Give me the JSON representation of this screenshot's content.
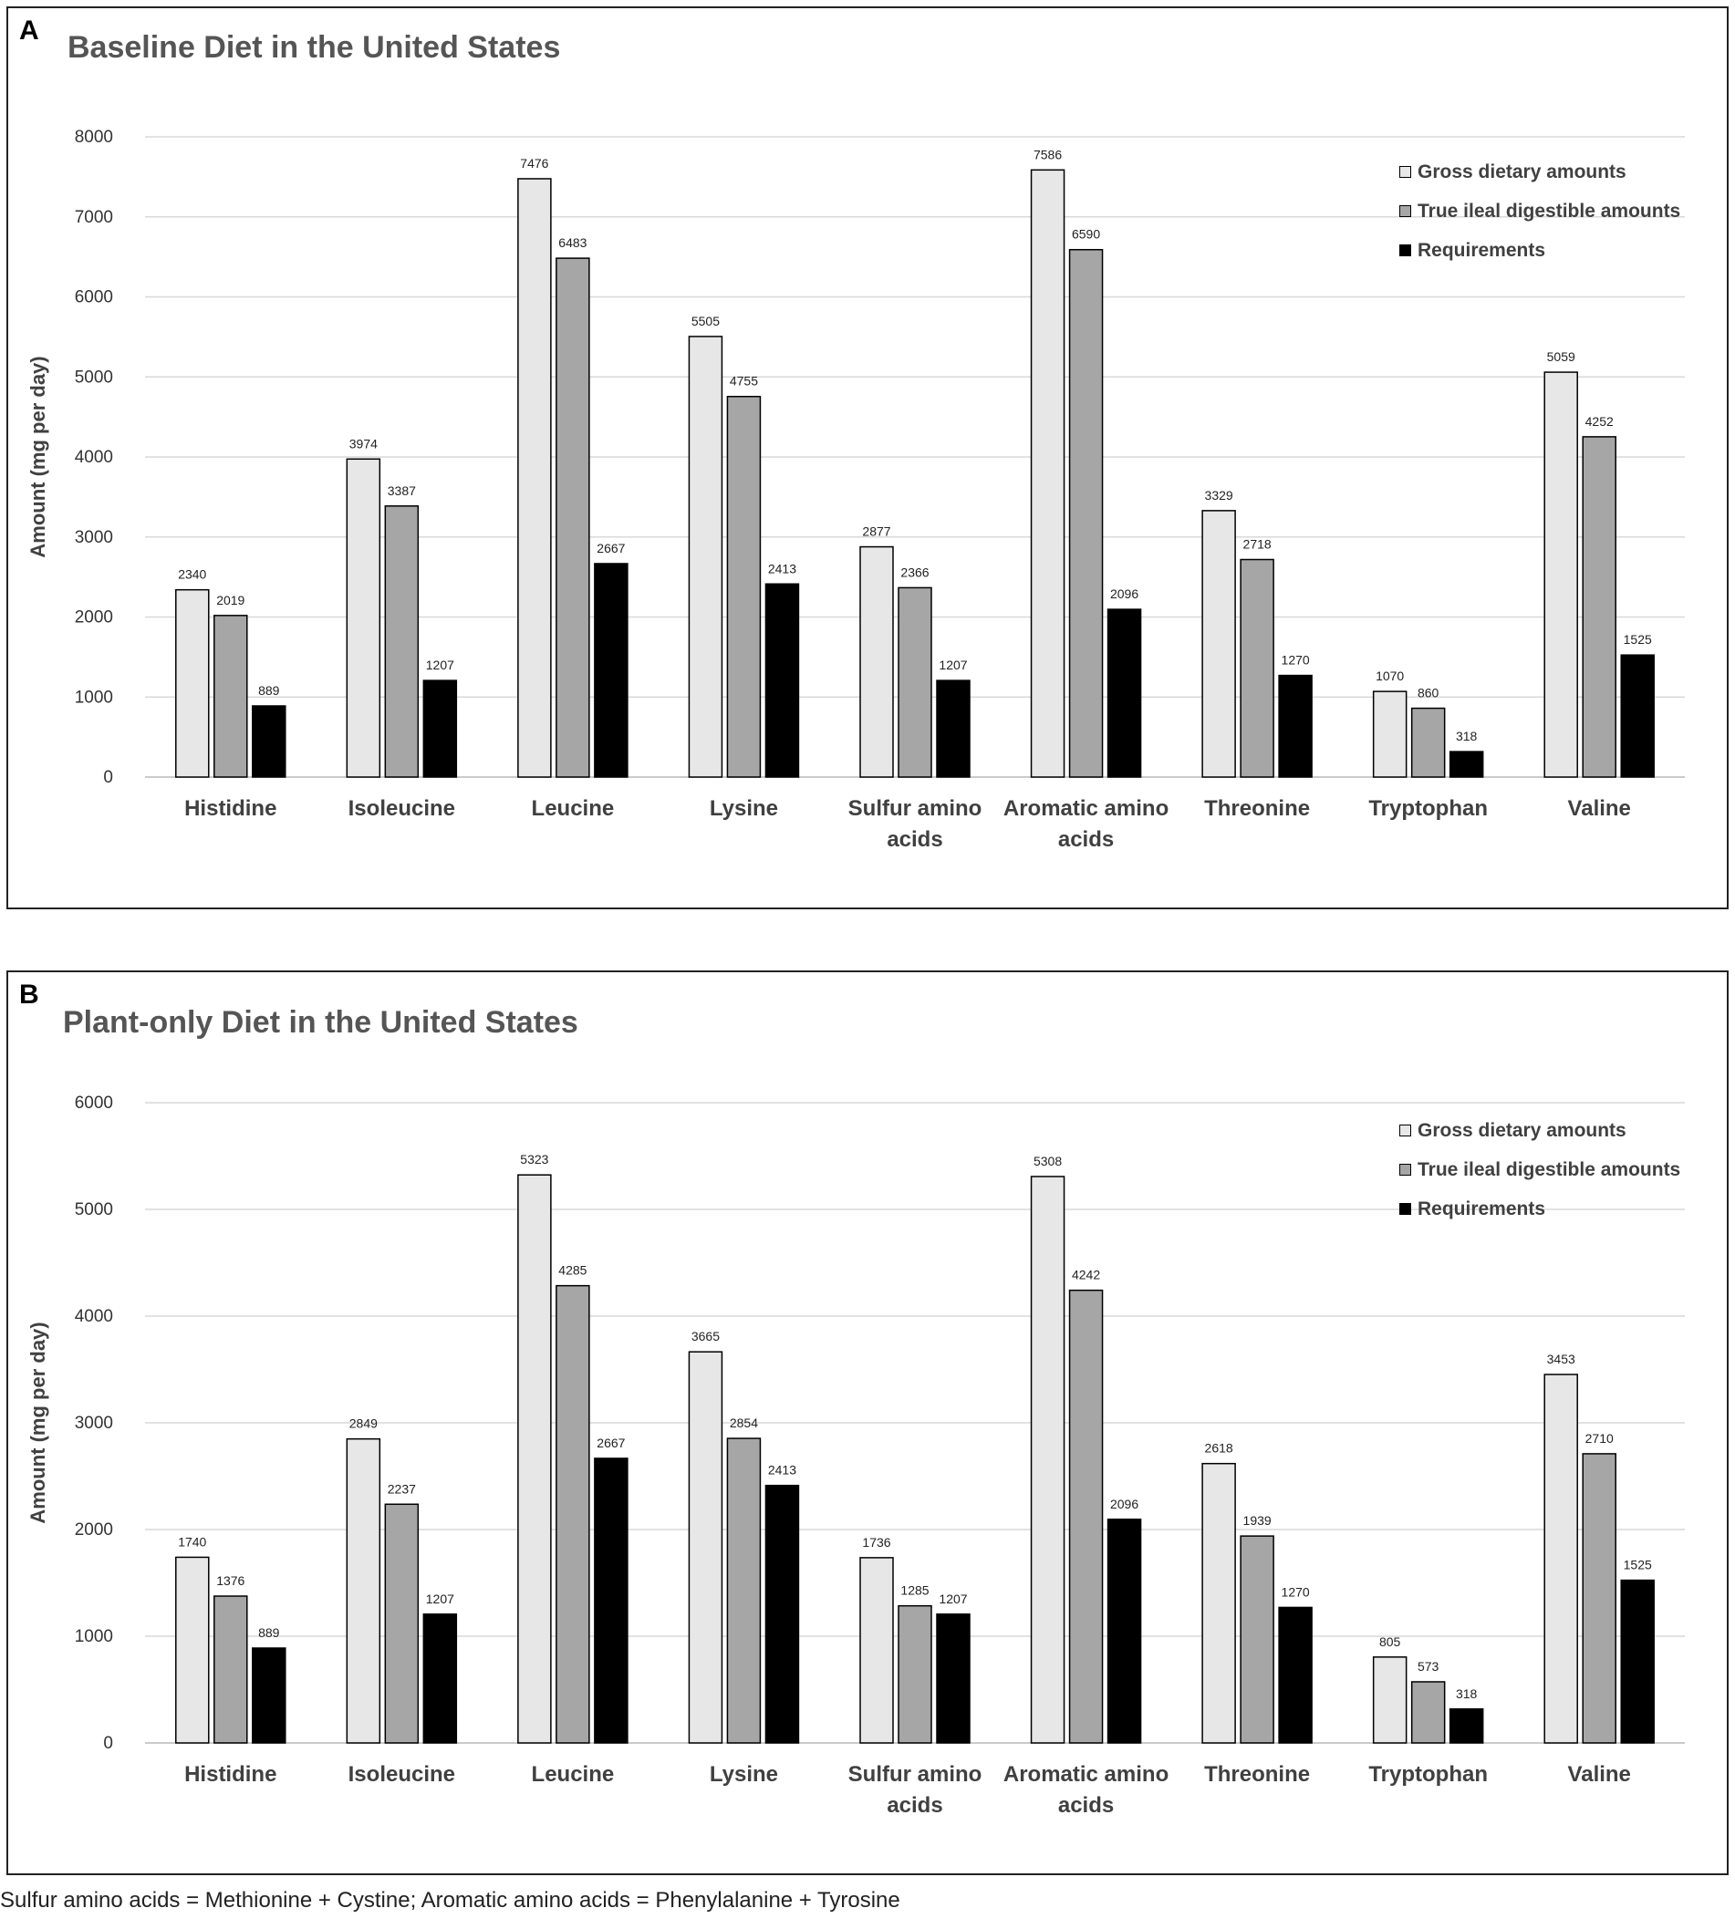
{
  "footnote": "Sulfur amino acids = Methionine + Cystine; Aromatic amino acids = Phenylalanine + Tyrosine",
  "colors": {
    "gross": "#e7e7e7",
    "digestible": "#a6a6a6",
    "requirements": "#000000",
    "grid": "#d9d9d9",
    "axis_text": "#404040"
  },
  "chart_data": [
    {
      "panel_label": "A",
      "type": "bar",
      "title": "Baseline Diet in the United States",
      "ylabel": "Amount (mg per day)",
      "xlabel": "",
      "ylim": [
        0,
        8000
      ],
      "yticks": [
        "0",
        "1000",
        "2000",
        "3000",
        "4000",
        "5000",
        "6000",
        "7000",
        "8000"
      ],
      "categories": [
        [
          "Histidine"
        ],
        [
          "Isoleucine"
        ],
        [
          "Leucine"
        ],
        [
          "Lysine"
        ],
        [
          "Sulfur amino",
          "acids"
        ],
        [
          "Aromatic amino",
          "acids"
        ],
        [
          "Threonine"
        ],
        [
          "Tryptophan"
        ],
        [
          "Valine"
        ]
      ],
      "legend": [
        "Gross dietary amounts",
        "True ileal digestible amounts",
        "Requirements"
      ],
      "series": [
        {
          "name": "Gross dietary amounts",
          "values": [
            2340,
            3974,
            7476,
            5505,
            2877,
            7586,
            3329,
            1070,
            5059
          ]
        },
        {
          "name": "True ileal digestible amounts",
          "values": [
            2019,
            3387,
            6483,
            4755,
            2366,
            6590,
            2718,
            860,
            4252
          ]
        },
        {
          "name": "Requirements",
          "values": [
            889,
            1207,
            2667,
            2413,
            1207,
            2096,
            1270,
            318,
            1525
          ]
        }
      ]
    },
    {
      "panel_label": "B",
      "type": "bar",
      "title": "Plant-only Diet in the United States",
      "ylabel": "Amount (mg per day)",
      "xlabel": "",
      "ylim": [
        0,
        6000
      ],
      "yticks": [
        "0",
        "1000",
        "2000",
        "3000",
        "4000",
        "5000",
        "6000"
      ],
      "categories": [
        [
          "Histidine"
        ],
        [
          "Isoleucine"
        ],
        [
          "Leucine"
        ],
        [
          "Lysine"
        ],
        [
          "Sulfur amino",
          "acids"
        ],
        [
          "Aromatic amino",
          "acids"
        ],
        [
          "Threonine"
        ],
        [
          "Tryptophan"
        ],
        [
          "Valine"
        ]
      ],
      "legend": [
        "Gross dietary amounts",
        "True ileal digestible amounts",
        "Requirements"
      ],
      "series": [
        {
          "name": "Gross dietary amounts",
          "values": [
            1740,
            2849,
            5323,
            3665,
            1736,
            5308,
            2618,
            805,
            3453
          ]
        },
        {
          "name": "True ileal digestible amounts",
          "values": [
            1376,
            2237,
            4285,
            2854,
            1285,
            4242,
            1939,
            573,
            2710
          ]
        },
        {
          "name": "Requirements",
          "values": [
            889,
            1207,
            2667,
            2413,
            1207,
            2096,
            1270,
            318,
            1525
          ]
        }
      ]
    }
  ]
}
